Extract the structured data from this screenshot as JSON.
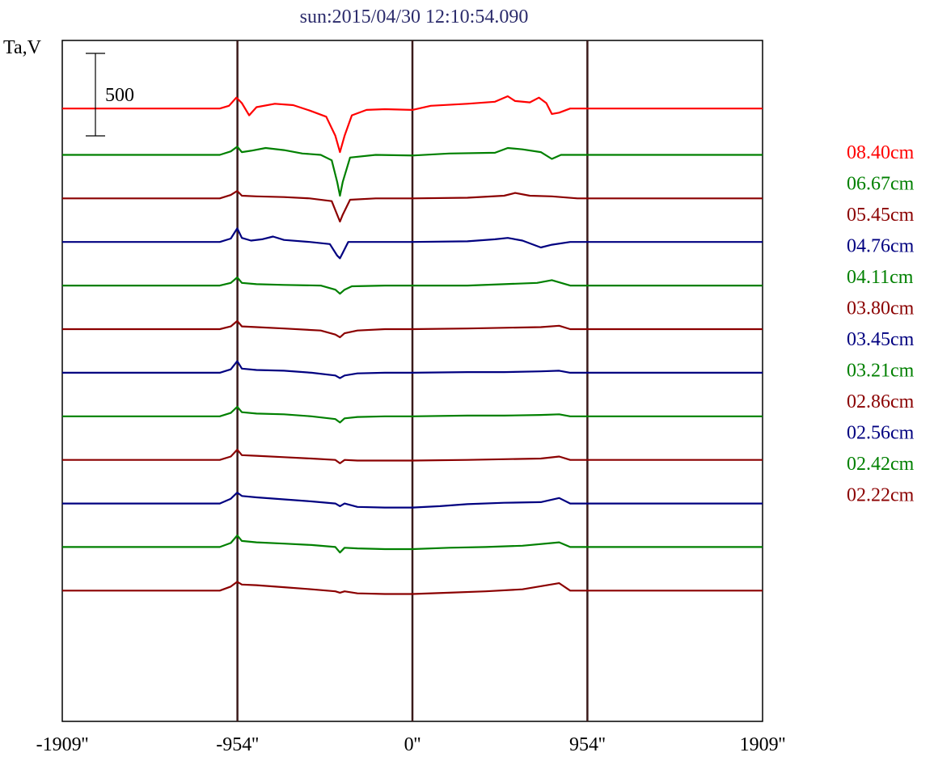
{
  "chart_data": {
    "type": "line",
    "title": "sun:2015/04/30 12:10:54.090",
    "ylabel": "Ta,V",
    "xlabel": "",
    "x_ticks": [
      {
        "value": -1909,
        "label": "-1909''"
      },
      {
        "value": -954,
        "label": "-954''"
      },
      {
        "value": 0,
        "label": "0''"
      },
      {
        "value": 954,
        "label": "954''"
      },
      {
        "value": 1909,
        "label": "1909''"
      }
    ],
    "xlim": [
      -1909,
      1909
    ],
    "ylim": [
      -3300,
      1700
    ],
    "vertical_lines": [
      -954,
      0,
      954
    ],
    "scale_bar": {
      "value": 500,
      "label": "500"
    },
    "grid": false,
    "legend_position": "right",
    "series": [
      {
        "name": "08.40cm",
        "color": "#ff0000",
        "offset": 1200,
        "points": [
          [
            -1909,
            0
          ],
          [
            -1050,
            0
          ],
          [
            -1000,
            20
          ],
          [
            -960,
            80
          ],
          [
            -930,
            40
          ],
          [
            -890,
            -50
          ],
          [
            -850,
            10
          ],
          [
            -750,
            35
          ],
          [
            -650,
            25
          ],
          [
            -560,
            -15
          ],
          [
            -470,
            -60
          ],
          [
            -420,
            -200
          ],
          [
            -395,
            -320
          ],
          [
            -370,
            -200
          ],
          [
            -330,
            -50
          ],
          [
            -250,
            -10
          ],
          [
            -150,
            -5
          ],
          [
            0,
            -10
          ],
          [
            100,
            20
          ],
          [
            300,
            35
          ],
          [
            450,
            50
          ],
          [
            520,
            90
          ],
          [
            560,
            55
          ],
          [
            640,
            45
          ],
          [
            690,
            80
          ],
          [
            730,
            40
          ],
          [
            760,
            -40
          ],
          [
            800,
            -30
          ],
          [
            860,
            0
          ],
          [
            950,
            0
          ],
          [
            1909,
            0
          ]
        ]
      },
      {
        "name": "06.67cm",
        "color": "#008000",
        "offset": 860,
        "points": [
          [
            -1909,
            0
          ],
          [
            -1050,
            0
          ],
          [
            -990,
            25
          ],
          [
            -955,
            60
          ],
          [
            -930,
            20
          ],
          [
            -880,
            30
          ],
          [
            -800,
            50
          ],
          [
            -700,
            35
          ],
          [
            -600,
            10
          ],
          [
            -500,
            0
          ],
          [
            -440,
            -40
          ],
          [
            -410,
            -200
          ],
          [
            -395,
            -300
          ],
          [
            -380,
            -200
          ],
          [
            -340,
            -20
          ],
          [
            -200,
            0
          ],
          [
            0,
            -5
          ],
          [
            200,
            10
          ],
          [
            450,
            15
          ],
          [
            520,
            50
          ],
          [
            600,
            40
          ],
          [
            700,
            20
          ],
          [
            760,
            -30
          ],
          [
            810,
            0
          ],
          [
            900,
            0
          ],
          [
            1909,
            0
          ]
        ]
      },
      {
        "name": "05.45cm",
        "color": "#8b0000",
        "offset": 540,
        "points": [
          [
            -1909,
            0
          ],
          [
            -1050,
            0
          ],
          [
            -990,
            25
          ],
          [
            -955,
            55
          ],
          [
            -930,
            20
          ],
          [
            -850,
            15
          ],
          [
            -700,
            10
          ],
          [
            -560,
            0
          ],
          [
            -440,
            -20
          ],
          [
            -410,
            -120
          ],
          [
            -395,
            -170
          ],
          [
            -380,
            -120
          ],
          [
            -340,
            -10
          ],
          [
            -200,
            0
          ],
          [
            0,
            0
          ],
          [
            300,
            5
          ],
          [
            500,
            20
          ],
          [
            560,
            40
          ],
          [
            640,
            20
          ],
          [
            760,
            15
          ],
          [
            900,
            0
          ],
          [
            1909,
            0
          ]
        ]
      },
      {
        "name": "04.76cm",
        "color": "#000080",
        "offset": 220,
        "points": [
          [
            -1909,
            0
          ],
          [
            -1050,
            0
          ],
          [
            -990,
            25
          ],
          [
            -955,
            100
          ],
          [
            -930,
            30
          ],
          [
            -880,
            10
          ],
          [
            -820,
            20
          ],
          [
            -760,
            40
          ],
          [
            -700,
            15
          ],
          [
            -560,
            0
          ],
          [
            -450,
            -15
          ],
          [
            -410,
            -100
          ],
          [
            -395,
            -120
          ],
          [
            -380,
            -80
          ],
          [
            -350,
            0
          ],
          [
            -200,
            0
          ],
          [
            0,
            0
          ],
          [
            300,
            5
          ],
          [
            450,
            20
          ],
          [
            520,
            30
          ],
          [
            600,
            10
          ],
          [
            700,
            -40
          ],
          [
            760,
            -20
          ],
          [
            860,
            0
          ],
          [
            1909,
            0
          ]
        ]
      },
      {
        "name": "04.11cm",
        "color": "#008000",
        "offset": -100,
        "points": [
          [
            -1909,
            0
          ],
          [
            -1050,
            0
          ],
          [
            -990,
            20
          ],
          [
            -955,
            60
          ],
          [
            -930,
            20
          ],
          [
            -850,
            10
          ],
          [
            -700,
            5
          ],
          [
            -500,
            0
          ],
          [
            -420,
            -30
          ],
          [
            -395,
            -60
          ],
          [
            -370,
            -30
          ],
          [
            -330,
            -5
          ],
          [
            -150,
            0
          ],
          [
            0,
            0
          ],
          [
            300,
            0
          ],
          [
            500,
            10
          ],
          [
            680,
            20
          ],
          [
            760,
            40
          ],
          [
            860,
            0
          ],
          [
            1909,
            0
          ]
        ]
      },
      {
        "name": "03.80cm",
        "color": "#8b0000",
        "offset": -420,
        "points": [
          [
            -1909,
            0
          ],
          [
            -1050,
            0
          ],
          [
            -990,
            20
          ],
          [
            -955,
            60
          ],
          [
            -930,
            20
          ],
          [
            -850,
            15
          ],
          [
            -700,
            5
          ],
          [
            -500,
            -10
          ],
          [
            -420,
            -40
          ],
          [
            -395,
            -60
          ],
          [
            -370,
            -30
          ],
          [
            -300,
            -10
          ],
          [
            -150,
            0
          ],
          [
            0,
            0
          ],
          [
            300,
            5
          ],
          [
            500,
            10
          ],
          [
            700,
            15
          ],
          [
            800,
            25
          ],
          [
            860,
            0
          ],
          [
            1909,
            0
          ]
        ]
      },
      {
        "name": "03.45cm",
        "color": "#000080",
        "offset": -740,
        "points": [
          [
            -1909,
            0
          ],
          [
            -1050,
            0
          ],
          [
            -990,
            25
          ],
          [
            -955,
            85
          ],
          [
            -930,
            30
          ],
          [
            -850,
            20
          ],
          [
            -700,
            15
          ],
          [
            -550,
            0
          ],
          [
            -420,
            -20
          ],
          [
            -395,
            -40
          ],
          [
            -370,
            -20
          ],
          [
            -300,
            -5
          ],
          [
            -150,
            0
          ],
          [
            0,
            0
          ],
          [
            300,
            5
          ],
          [
            500,
            5
          ],
          [
            700,
            10
          ],
          [
            800,
            15
          ],
          [
            860,
            0
          ],
          [
            1909,
            0
          ]
        ]
      },
      {
        "name": "03.21cm",
        "color": "#008000",
        "offset": -1060,
        "points": [
          [
            -1909,
            0
          ],
          [
            -1050,
            0
          ],
          [
            -990,
            25
          ],
          [
            -955,
            70
          ],
          [
            -930,
            30
          ],
          [
            -850,
            20
          ],
          [
            -700,
            15
          ],
          [
            -550,
            0
          ],
          [
            -420,
            -20
          ],
          [
            -395,
            -45
          ],
          [
            -370,
            -15
          ],
          [
            -300,
            -5
          ],
          [
            -150,
            0
          ],
          [
            0,
            0
          ],
          [
            300,
            5
          ],
          [
            500,
            5
          ],
          [
            700,
            10
          ],
          [
            800,
            15
          ],
          [
            860,
            0
          ],
          [
            1909,
            0
          ]
        ]
      },
      {
        "name": "02.86cm",
        "color": "#8b0000",
        "offset": -1380,
        "points": [
          [
            -1909,
            0
          ],
          [
            -1050,
            0
          ],
          [
            -990,
            25
          ],
          [
            -955,
            75
          ],
          [
            -930,
            35
          ],
          [
            -850,
            30
          ],
          [
            -700,
            20
          ],
          [
            -550,
            10
          ],
          [
            -420,
            0
          ],
          [
            -395,
            -25
          ],
          [
            -370,
            0
          ],
          [
            -300,
            -5
          ],
          [
            -150,
            -5
          ],
          [
            0,
            -5
          ],
          [
            300,
            0
          ],
          [
            500,
            5
          ],
          [
            700,
            10
          ],
          [
            800,
            25
          ],
          [
            860,
            0
          ],
          [
            1909,
            0
          ]
        ]
      },
      {
        "name": "02.56cm",
        "color": "#000080",
        "offset": -1700,
        "points": [
          [
            -1909,
            0
          ],
          [
            -1050,
            0
          ],
          [
            -990,
            35
          ],
          [
            -955,
            80
          ],
          [
            -930,
            55
          ],
          [
            -850,
            45
          ],
          [
            -700,
            30
          ],
          [
            -550,
            15
          ],
          [
            -420,
            0
          ],
          [
            -395,
            -20
          ],
          [
            -370,
            0
          ],
          [
            -300,
            -25
          ],
          [
            -150,
            -30
          ],
          [
            0,
            -30
          ],
          [
            150,
            -20
          ],
          [
            300,
            -5
          ],
          [
            500,
            5
          ],
          [
            700,
            10
          ],
          [
            800,
            40
          ],
          [
            860,
            0
          ],
          [
            1909,
            0
          ]
        ]
      },
      {
        "name": "02.42cm",
        "color": "#008000",
        "offset": -2020,
        "points": [
          [
            -1909,
            0
          ],
          [
            -1050,
            0
          ],
          [
            -990,
            30
          ],
          [
            -955,
            85
          ],
          [
            -930,
            45
          ],
          [
            -850,
            35
          ],
          [
            -700,
            25
          ],
          [
            -550,
            15
          ],
          [
            -420,
            0
          ],
          [
            -395,
            -40
          ],
          [
            -370,
            -5
          ],
          [
            -300,
            -10
          ],
          [
            -150,
            -15
          ],
          [
            0,
            -15
          ],
          [
            200,
            -5
          ],
          [
            400,
            0
          ],
          [
            600,
            10
          ],
          [
            800,
            35
          ],
          [
            860,
            0
          ],
          [
            1909,
            0
          ]
        ]
      },
      {
        "name": "02.22cm",
        "color": "#8b0000",
        "offset": -2340,
        "points": [
          [
            -1909,
            0
          ],
          [
            -1050,
            0
          ],
          [
            -990,
            30
          ],
          [
            -955,
            65
          ],
          [
            -930,
            45
          ],
          [
            -850,
            40
          ],
          [
            -700,
            25
          ],
          [
            -550,
            10
          ],
          [
            -420,
            -5
          ],
          [
            -395,
            -15
          ],
          [
            -370,
            -5
          ],
          [
            -300,
            -20
          ],
          [
            -150,
            -25
          ],
          [
            0,
            -25
          ],
          [
            200,
            -15
          ],
          [
            400,
            -5
          ],
          [
            600,
            10
          ],
          [
            800,
            55
          ],
          [
            860,
            0
          ],
          [
            1909,
            0
          ]
        ]
      }
    ]
  }
}
